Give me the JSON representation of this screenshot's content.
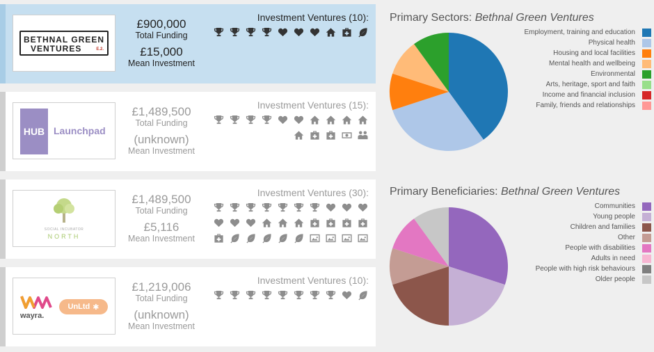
{
  "labels": {
    "total_funding": "Total Funding",
    "mean_investment": "Mean Investment"
  },
  "cards": [
    {
      "name": "Bethnal Green Ventures",
      "selected": true,
      "logo": {
        "line1": "BETHNAL GREEN",
        "line2": "VENTURES",
        "tag": "E.2."
      },
      "total_funding": "£900,000",
      "mean_investment": "£15,000",
      "investments_title": "Investment Ventures (10):",
      "icons": [
        "trophy-icon",
        "trophy-icon",
        "trophy-icon",
        "trophy-icon",
        "heart-icon",
        "heart-icon",
        "heart-icon",
        "home-icon",
        "medkit-icon",
        "leaf-icon"
      ]
    },
    {
      "name": "HUB Launchpad",
      "selected": false,
      "logo": {
        "box": "HUB",
        "text": "Launchpad"
      },
      "total_funding": "£1,489,500",
      "mean_investment": "(unknown)",
      "investments_title": "Investment Ventures (15):",
      "icons": [
        "trophy-icon",
        "trophy-icon",
        "trophy-icon",
        "trophy-icon",
        "heart-icon",
        "heart-icon",
        "home-icon",
        "home-icon",
        "home-icon",
        "home-icon",
        "home-icon",
        "medkit-icon",
        "medkit-icon",
        "money-icon",
        "people-icon"
      ]
    },
    {
      "name": "Social Incubator North",
      "selected": false,
      "logo": {
        "line1": "SOCIAL INCUBATOR",
        "line2": "NORTH"
      },
      "total_funding": "£1,489,500",
      "mean_investment": "£5,116",
      "investments_title": "Investment Ventures (30):",
      "icons": [
        "trophy-icon",
        "trophy-icon",
        "trophy-icon",
        "trophy-icon",
        "trophy-icon",
        "trophy-icon",
        "trophy-icon",
        "heart-icon",
        "heart-icon",
        "heart-icon",
        "heart-icon",
        "heart-icon",
        "heart-icon",
        "home-icon",
        "home-icon",
        "home-icon",
        "medkit-icon",
        "medkit-icon",
        "medkit-icon",
        "medkit-icon",
        "medkit-icon",
        "leaf-icon",
        "leaf-icon",
        "leaf-icon",
        "leaf-icon",
        "leaf-icon",
        "picture-icon",
        "picture-icon",
        "picture-icon",
        "picture-icon"
      ]
    },
    {
      "name": "Wayra UnLtd",
      "selected": false,
      "logo": {
        "left": "wayra.",
        "right": "UnLtd"
      },
      "total_funding": "£1,219,006",
      "mean_investment": "(unknown)",
      "investments_title": "Investment Ventures (10):",
      "icons": [
        "trophy-icon",
        "trophy-icon",
        "trophy-icon",
        "trophy-icon",
        "trophy-icon",
        "trophy-icon",
        "trophy-icon",
        "trophy-icon",
        "heart-icon",
        "leaf-icon"
      ]
    }
  ],
  "chart_data": [
    {
      "type": "pie",
      "title_prefix": "Primary Sectors: ",
      "title_entity": "Bethnal Green Ventures",
      "legend_placement": "right",
      "labels": [
        "Employment, training and education",
        "Physical health",
        "Housing and local facilities",
        "Mental health and wellbeing",
        "Environmental",
        "Arts, heritage, sport and faith",
        "Income and financial inclusion",
        "Family, friends and relationships"
      ],
      "values": [
        4,
        3,
        1,
        1,
        1,
        0,
        0,
        0
      ],
      "colors": [
        "#1f77b4",
        "#aec7e8",
        "#ff7f0e",
        "#ffbb78",
        "#2ca02c",
        "#98df8a",
        "#d62728",
        "#ff9896"
      ]
    },
    {
      "type": "pie",
      "title_prefix": "Primary Beneficiaries: ",
      "title_entity": "Bethnal Green Ventures",
      "legend_placement": "right",
      "labels": [
        "Communities",
        "Young people",
        "Children and families",
        "Other",
        "People with disabilities",
        "Adults in need",
        "People with high risk behaviours",
        "Older people"
      ],
      "values": [
        3,
        2,
        2,
        1,
        1,
        0,
        0,
        1
      ],
      "colors": [
        "#9467bd",
        "#c5b0d5",
        "#8c564b",
        "#c49c94",
        "#e377c2",
        "#f7b6d2",
        "#7f7f7f",
        "#c7c7c7"
      ]
    }
  ]
}
